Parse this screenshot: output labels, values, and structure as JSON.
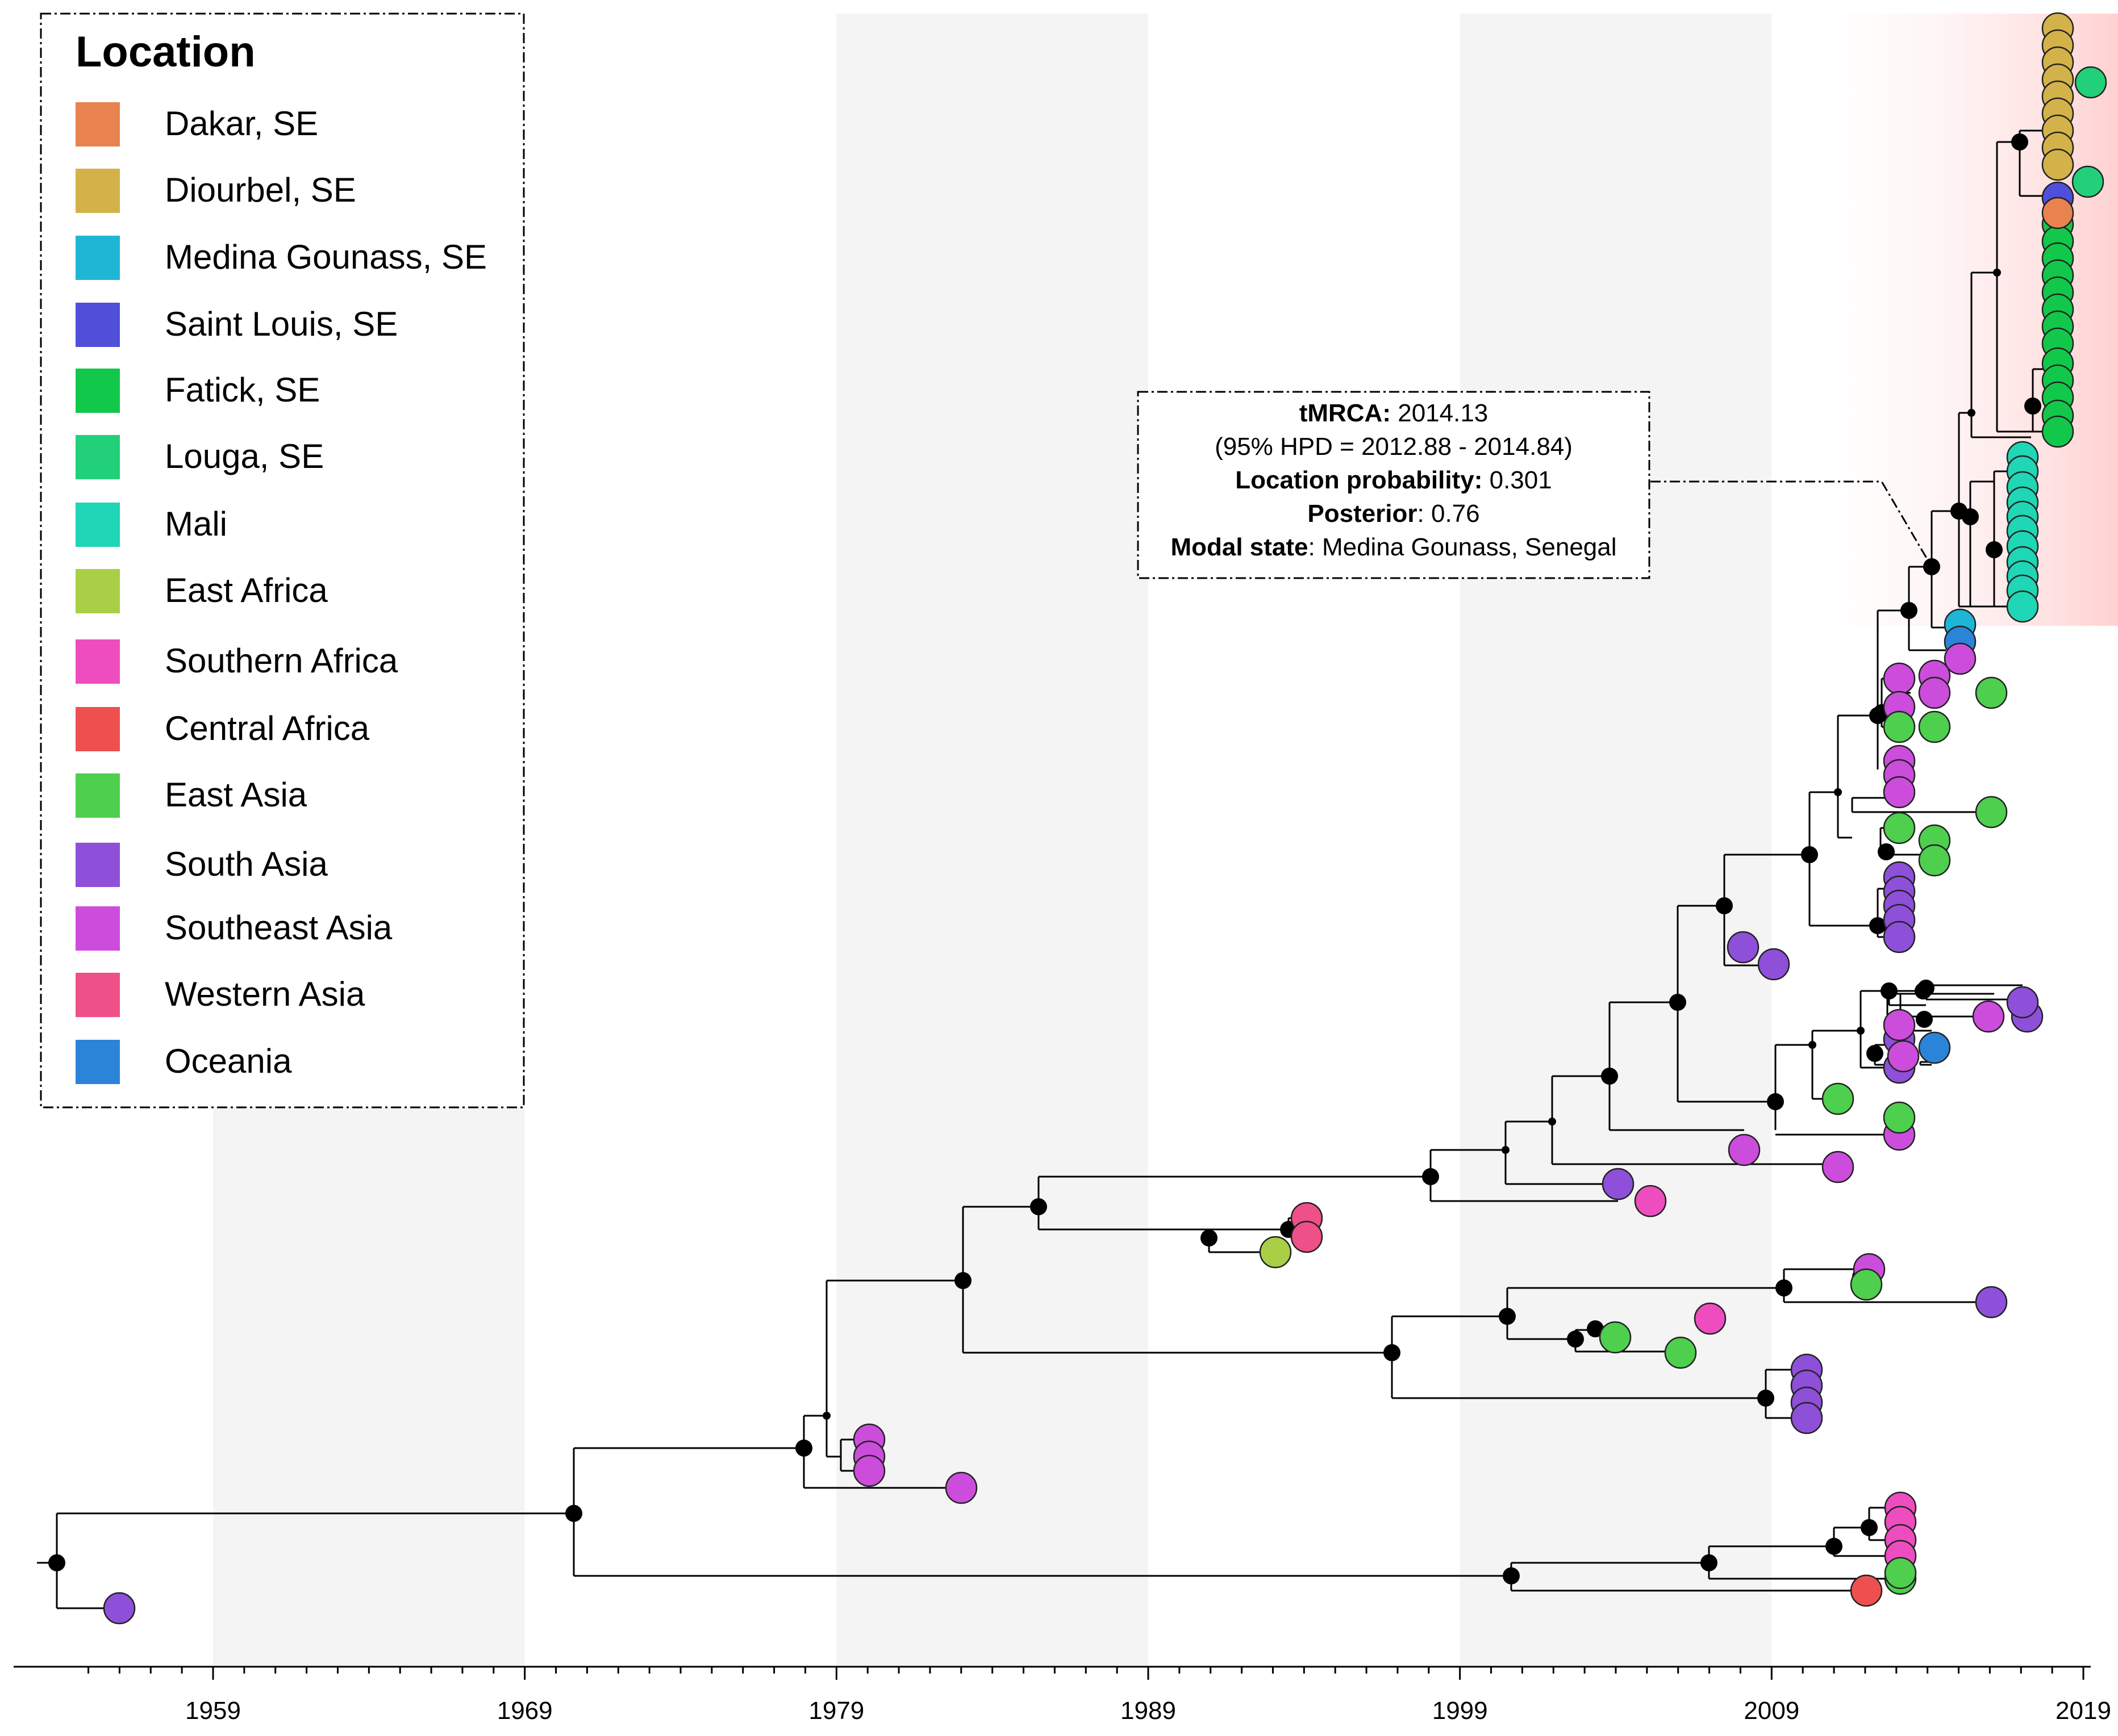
{
  "legend": {
    "title": "Location",
    "items": [
      {
        "label": "Dakar, SE",
        "color": "#E8834F"
      },
      {
        "label": "Diourbel, SE",
        "color": "#D4B24A"
      },
      {
        "label": "Medina Gounass, SE",
        "color": "#1FB6D6"
      },
      {
        "label": "Saint Louis, SE",
        "color": "#4F4FD9"
      },
      {
        "label": "Fatick, SE",
        "color": "#12C84A"
      },
      {
        "label": "Louga, SE",
        "color": "#22D07A"
      },
      {
        "label": "Mali",
        "color": "#1FD6B6"
      },
      {
        "label": "East Africa",
        "color": "#A8CF46"
      },
      {
        "label": "Southern Africa",
        "color": "#EE4DBF"
      },
      {
        "label": "Central Africa",
        "color": "#EE5050"
      },
      {
        "label": "East Asia",
        "color": "#4ECF4E"
      },
      {
        "label": "South Asia",
        "color": "#8E4FD9"
      },
      {
        "label": "Southeast Asia",
        "color": "#CC4DDC"
      },
      {
        "label": "Western Asia",
        "color": "#EE5088"
      },
      {
        "label": "Oceania",
        "color": "#2C84D9"
      }
    ]
  },
  "axis": {
    "ticks": [
      "1959",
      "1969",
      "1979",
      "1989",
      "1999",
      "2009",
      "2019"
    ],
    "domain": [
      1954,
      2019
    ],
    "shaded_bands": [
      [
        1959,
        1969
      ],
      [
        1979,
        1989
      ],
      [
        1999,
        2009
      ]
    ]
  },
  "annotation": {
    "line1_bold": "tMRCA:",
    "line1_val": " 2014.13",
    "line2": "(95% HPD = 2012.88 - 2014.84)",
    "line3_bold": "Location probability:",
    "line3_val": " 0.301",
    "line4_bold": "Posterior",
    "line4_val": ": 0.76",
    "line5_bold": "Modal state",
    "line5_val": ": Medina Gounass, Senegal"
  },
  "highlight_color": "#FFD0D0"
}
